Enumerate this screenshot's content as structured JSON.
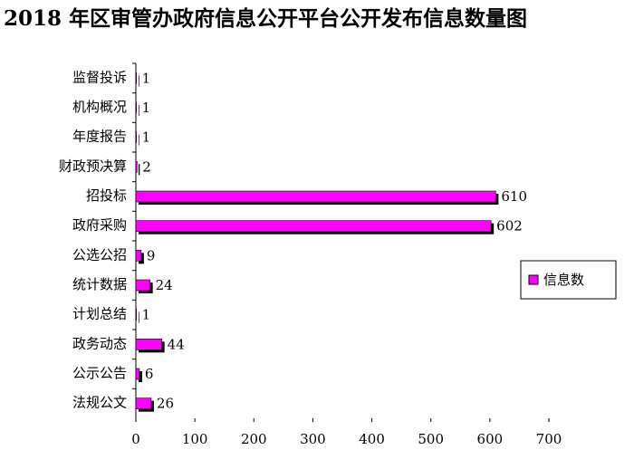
{
  "chart_data": {
    "type": "bar",
    "orientation": "horizontal",
    "title": "2018 年区审管办政府信息公开平台公开发布信息数量图",
    "categories": [
      "监督投诉",
      "机构概况",
      "年度报告",
      "财政预决算",
      "招投标",
      "政府采购",
      "公选公招",
      "统计数据",
      "计划总结",
      "政务动态",
      "公示公告",
      "法规公文"
    ],
    "series": [
      {
        "name": "信息数",
        "color": "#ff00ff",
        "values": [
          1,
          1,
          1,
          2,
          610,
          602,
          9,
          24,
          1,
          44,
          6,
          26
        ]
      }
    ],
    "xlim": [
      0,
      700
    ],
    "xticks": [
      0,
      100,
      200,
      300,
      400,
      500,
      600,
      700
    ],
    "legend": "right",
    "grid": false
  }
}
